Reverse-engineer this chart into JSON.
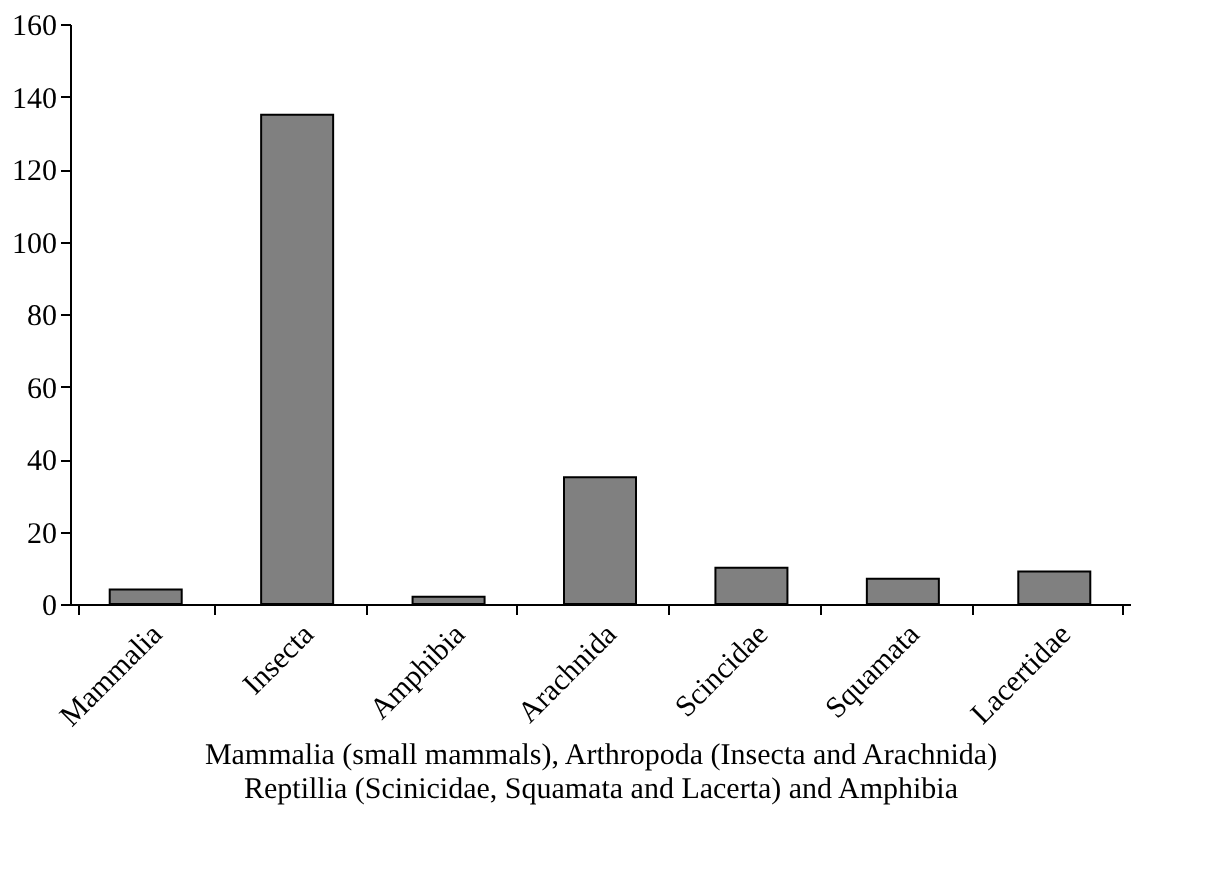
{
  "chart_data": {
    "type": "bar",
    "categories": [
      "Mammalia",
      "Insecta",
      "Amphibia",
      "Arachnida",
      "Scincidae",
      "Squamata",
      "Lacertidae"
    ],
    "values": [
      4,
      135,
      2,
      35,
      10,
      7,
      9
    ],
    "color": "#808080",
    "ylim": [
      0,
      160
    ],
    "yticks": [
      0,
      20,
      40,
      60,
      80,
      100,
      120,
      140,
      160
    ],
    "xlabel": "Mammalia (small mammals), Arthropoda (Insecta and Arachnida)\nReptillia (Scinicidae, Squamata and Lacerta) and Amphibia",
    "grid": false
  }
}
